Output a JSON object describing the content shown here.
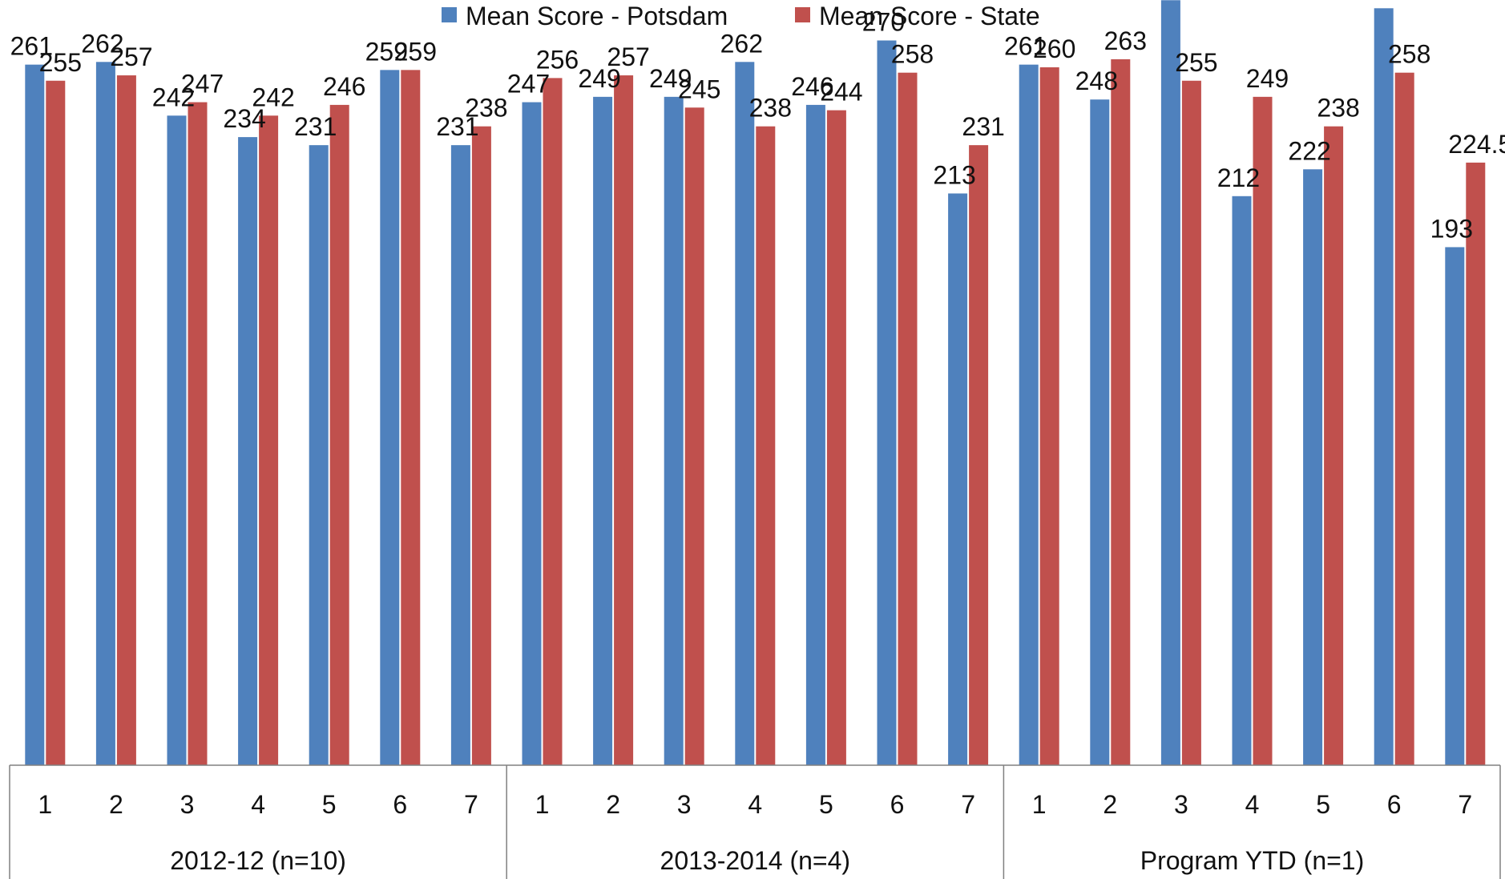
{
  "chart_data": {
    "type": "bar",
    "title": "",
    "xlabel": "",
    "ylabel": "",
    "ylim": [
      0,
      300
    ],
    "legend_position": "top",
    "grid": false,
    "colors": {
      "potsdam": "#4F81BD",
      "state": "#C0504D"
    },
    "groups": [
      {
        "label": "2012-12 (n=10)",
        "categories": [
          "1",
          "2",
          "3",
          "4",
          "5",
          "6",
          "7"
        ]
      },
      {
        "label": "2013-2014 (n=4)",
        "categories": [
          "1",
          "2",
          "3",
          "4",
          "5",
          "6",
          "7"
        ]
      },
      {
        "label": "Program YTD (n=1)",
        "categories": [
          "1",
          "2",
          "3",
          "4",
          "5",
          "6",
          "7"
        ]
      }
    ],
    "series": [
      {
        "name": "Mean Score - Potsdam",
        "values": [
          261,
          262,
          242,
          234,
          231,
          259,
          231,
          247,
          249,
          249,
          262,
          246,
          270,
          213,
          261,
          248,
          285,
          212,
          222,
          282,
          193
        ],
        "labels": [
          "261",
          "262",
          "242",
          "234",
          "231",
          "259",
          "231",
          "247",
          "249",
          "249",
          "262",
          "246",
          "270",
          "213",
          "261",
          "248",
          "285",
          "212",
          "222",
          "282",
          "193"
        ]
      },
      {
        "name": "Mean Score - State",
        "values": [
          255,
          257,
          247,
          242,
          246,
          259,
          238,
          256,
          257,
          245,
          238,
          244,
          258,
          231,
          260,
          263,
          255,
          249,
          238,
          258,
          224.5
        ],
        "labels": [
          "255",
          "257",
          "247",
          "242",
          "246",
          "259",
          "238",
          "256",
          "257",
          "245",
          "238",
          "244",
          "258",
          "231",
          "260",
          "263",
          "255",
          "249",
          "238",
          "258",
          "224.5"
        ]
      }
    ]
  }
}
